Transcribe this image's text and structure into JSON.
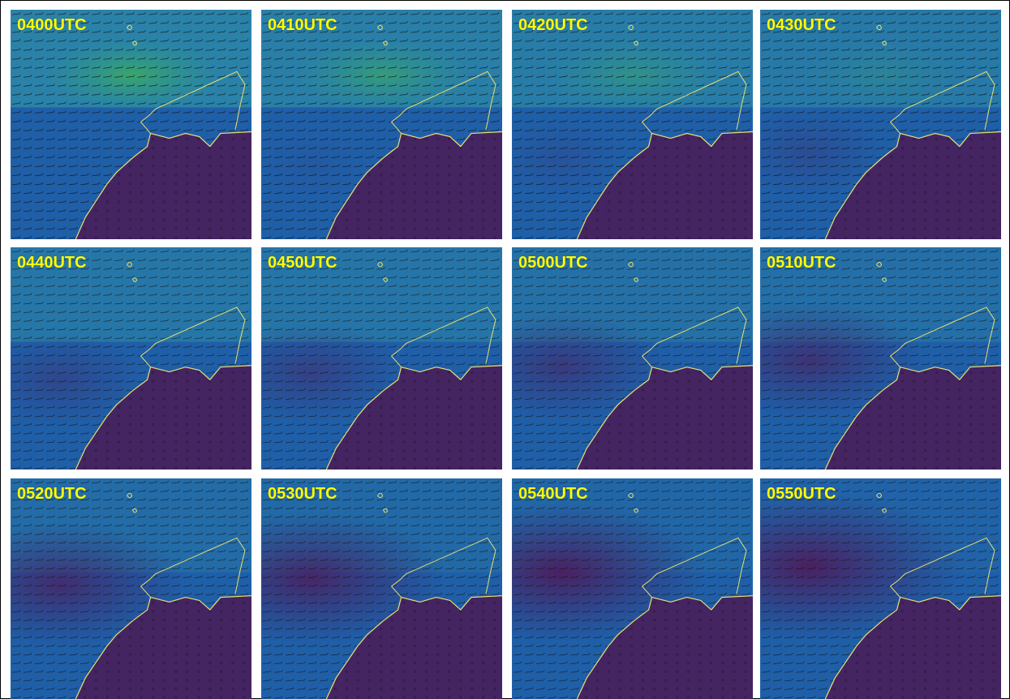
{
  "panels": [
    {
      "label": "0400UTC"
    },
    {
      "label": "0410UTC"
    },
    {
      "label": "0420UTC"
    },
    {
      "label": "0430UTC"
    },
    {
      "label": "0440UTC"
    },
    {
      "label": "0450UTC"
    },
    {
      "label": "0500UTC"
    },
    {
      "label": "0510UTC"
    },
    {
      "label": "0520UTC"
    },
    {
      "label": "0530UTC"
    },
    {
      "label": "0540UTC"
    },
    {
      "label": "0550UTC"
    }
  ]
}
